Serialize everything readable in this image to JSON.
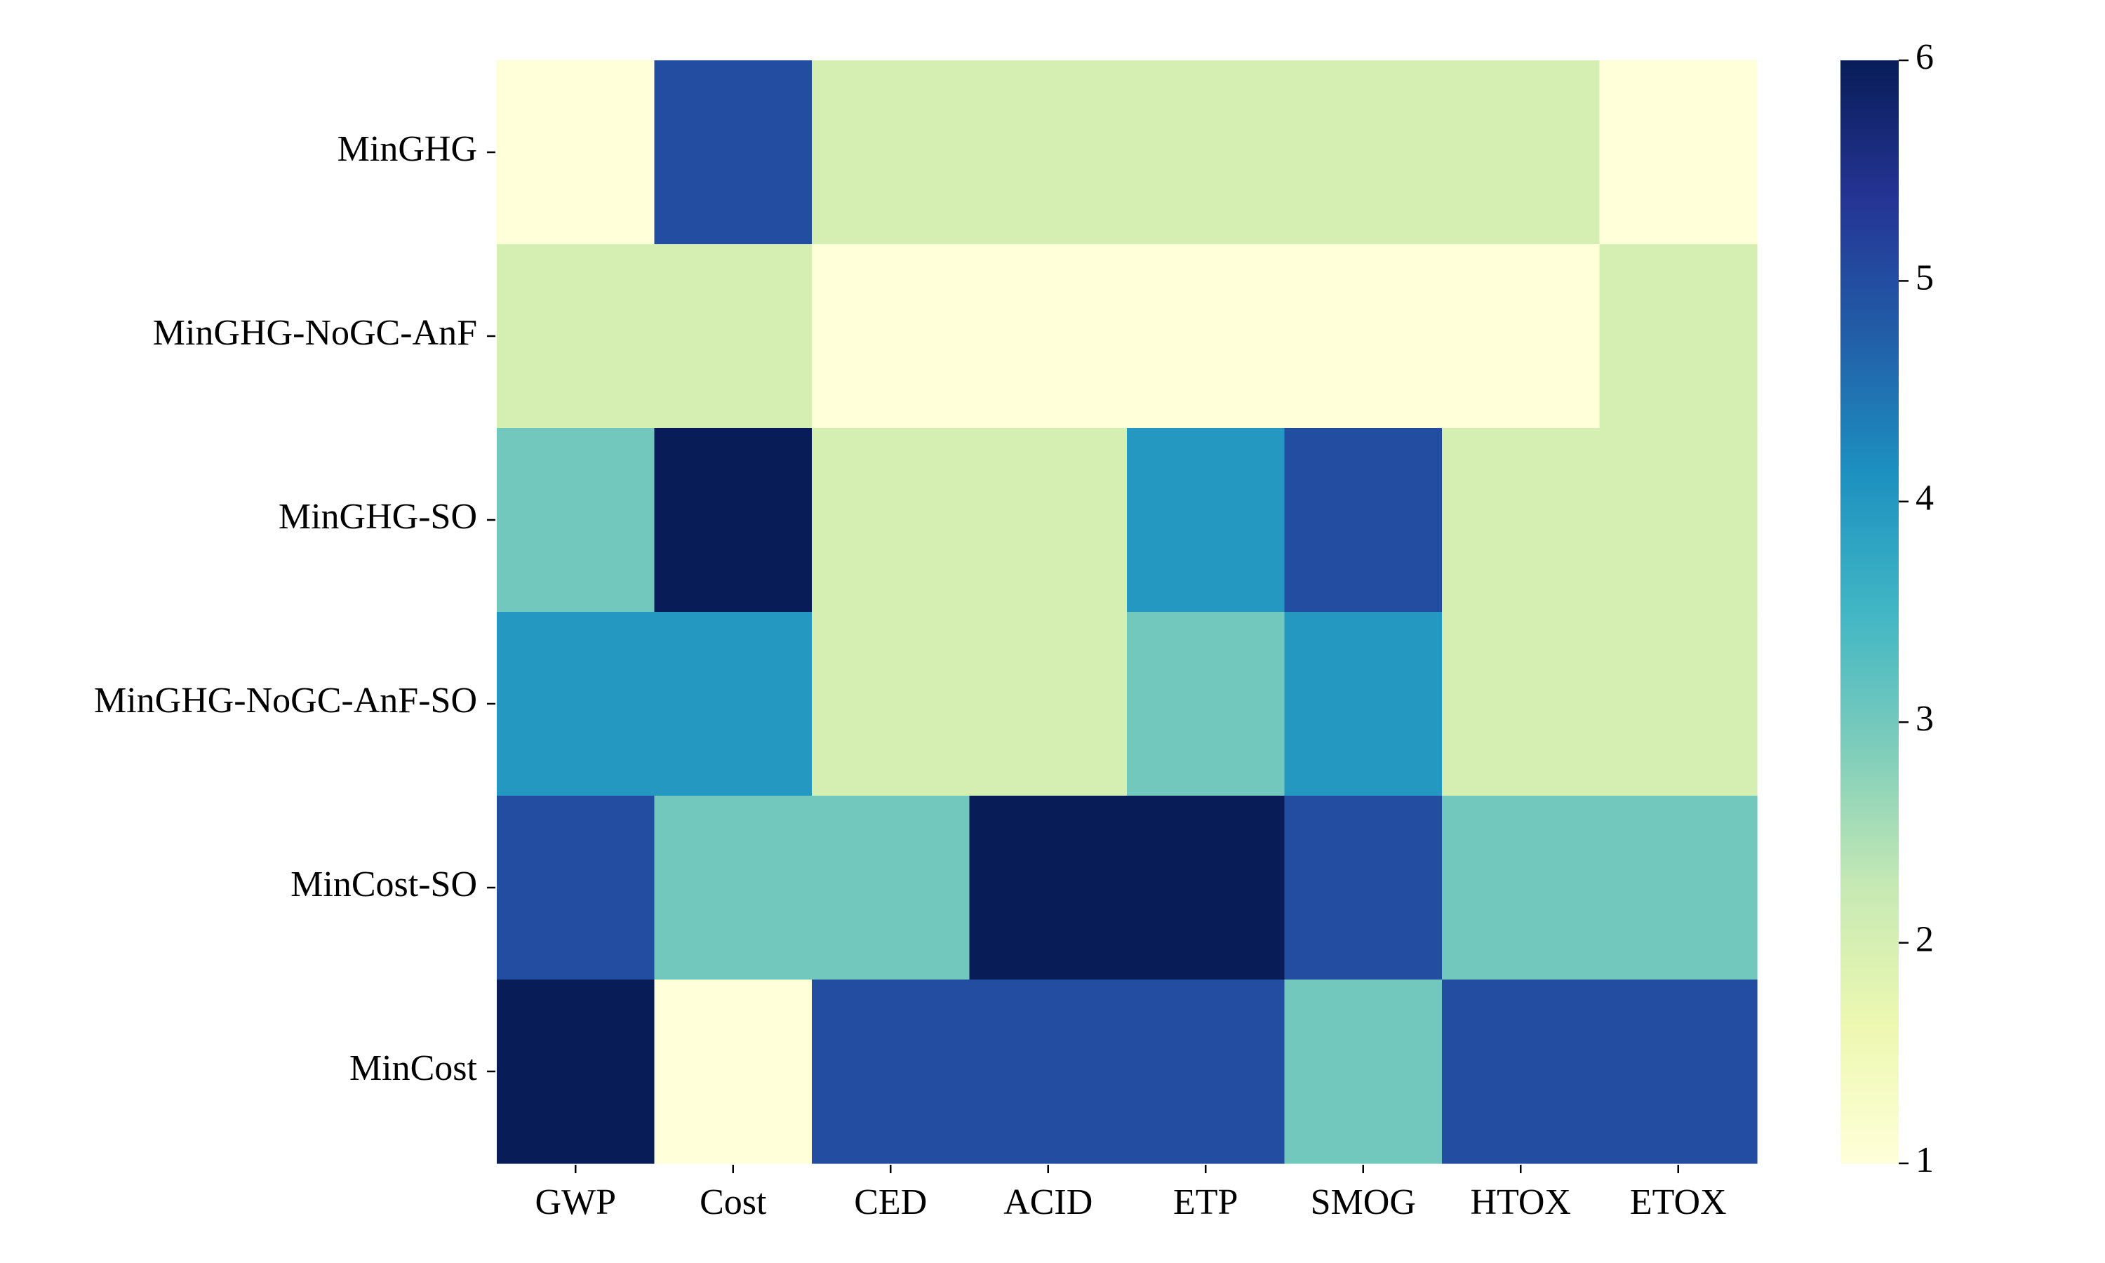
{
  "chart_data": {
    "type": "heatmap",
    "title": "",
    "xlabel": "",
    "ylabel": "",
    "x_categories": [
      "GWP",
      "Cost",
      "CED",
      "ACID",
      "ETP",
      "SMOG",
      "HTOX",
      "ETOX"
    ],
    "y_categories": [
      "MinGHG",
      "MinGHG-NoGC-AnF",
      "MinGHG-SO",
      "MinGHG-NoGC-AnF-SO",
      "MinCost-SO",
      "MinCost"
    ],
    "values": [
      [
        1,
        5,
        2,
        2,
        2,
        2,
        2,
        1
      ],
      [
        2,
        2,
        1,
        1,
        1,
        1,
        1,
        2
      ],
      [
        3,
        6,
        2,
        2,
        4,
        5,
        2,
        2
      ],
      [
        4,
        4,
        2,
        2,
        3,
        4,
        2,
        2
      ],
      [
        5,
        3,
        3,
        6,
        6,
        5,
        3,
        3
      ],
      [
        6,
        1,
        5,
        5,
        5,
        3,
        5,
        5
      ]
    ],
    "colorbar": {
      "range": [
        1,
        6
      ],
      "ticks": [
        "1",
        "2",
        "3",
        "4",
        "5",
        "6"
      ],
      "colormap": "YlGnBu"
    },
    "grid": false
  }
}
